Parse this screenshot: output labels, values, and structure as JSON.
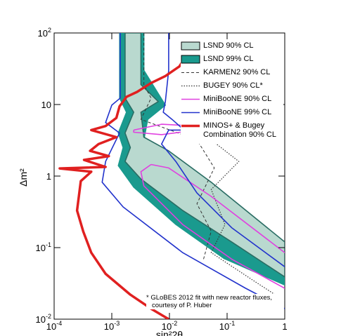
{
  "chart_data": {
    "type": "line",
    "xlabel": "sin²2θ",
    "ylabel": "Δm²",
    "xlog": true,
    "ylog": true,
    "xlim": [
      0.0001,
      1
    ],
    "ylim": [
      0.01,
      100
    ],
    "xticks": [
      {
        "value": 0.0001,
        "label": "10",
        "power": "-4"
      },
      {
        "value": 0.001,
        "label": "10",
        "power": "-3"
      },
      {
        "value": 0.01,
        "label": "10",
        "power": "-2"
      },
      {
        "value": 0.1,
        "label": "10",
        "power": "-1"
      },
      1
    ],
    "yticks": [
      {
        "value": 0.01,
        "label": "10",
        "power": "-2"
      },
      {
        "value": 0.1,
        "label": "10",
        "power": "-1"
      },
      1,
      10,
      {
        "value": 100,
        "label": "10",
        "power": "2"
      }
    ],
    "series": [
      {
        "name": "LSND 99% CL",
        "color": "#1a9a8e",
        "fill": "#1a9a8e",
        "style": "solid",
        "x": [
          0.00137,
          0.0036,
          0.0036,
          0.0085,
          0.0042,
          0.0036,
          0.011,
          0.07,
          1,
          1,
          0.09,
          0.013,
          0.0024,
          0.0013,
          0.00157,
          0.0013,
          0.0018,
          0.00137
        ],
        "values": [
          100,
          100,
          30,
          9.8,
          6.2,
          3.2,
          2.0,
          0.52,
          0.085,
          0.03,
          0.07,
          0.21,
          0.7,
          1.4,
          2.5,
          4.0,
          7.8,
          12.3
        ]
      },
      {
        "name": "LSND 90% CL",
        "color": "#2a6d64",
        "fill": "#b9d9cf",
        "style": "solid",
        "x": [
          0.0017,
          0.0032,
          0.0032,
          0.0064,
          0.0032,
          0.0036,
          0.0097,
          0.053,
          1,
          1,
          0.12,
          0.017,
          0.0032,
          0.0017,
          0.0021,
          0.0017,
          0.0024,
          0.0017
        ],
        "values": [
          100,
          100,
          19,
          11,
          7.8,
          3.5,
          2.25,
          0.82,
          0.12,
          0.039,
          0.12,
          0.33,
          0.91,
          1.6,
          2.5,
          4.0,
          7.8,
          12.3
        ]
      },
      {
        "name": "KARMEN2 90% CL",
        "color": "#333333",
        "style": "dash",
        "x": [
          0.0036,
          0.0036,
          0.0048,
          0.0032,
          0.03,
          0.06,
          0.03,
          0.053,
          0.039
        ],
        "values": [
          100,
          19,
          12.3,
          6.2,
          3.2,
          1.3,
          0.41,
          0.17,
          0.069
        ]
      },
      {
        "name": "BUGEY 90% CL*",
        "color": "#333333",
        "style": "dot",
        "x": [
          0.053,
          0.16,
          0.053,
          0.092,
          0.053,
          0.28,
          1
        ],
        "values": [
          3.2,
          1.6,
          0.65,
          0.21,
          0.085,
          0.035,
          0.018
        ]
      },
      {
        "name": "MiniBooNE 90% CL",
        "color": "#e040e0",
        "style": "solid",
        "x": [
          0.0024,
          0.0073,
          0.03,
          0.03,
          0.0073,
          0.0024,
          0.0024,
          null,
          0.0048,
          0.0097,
          0.053,
          1,
          null,
          1,
          0.12,
          0.017,
          0.0036,
          0.0032,
          0.0048
        ],
        "values": [
          4.4,
          5.3,
          5.0,
          4.4,
          3.8,
          4.1,
          4.4,
          null,
          1.45,
          1.3,
          0.52,
          0.085,
          null,
          0.027,
          0.069,
          0.21,
          0.73,
          1.15,
          1.45
        ]
      },
      {
        "name": "MiniBooNE 99% CL",
        "color": "#2233cc",
        "style": "solid",
        "x": [
          0.0014,
          0.0014,
          0.001,
          0.00078,
          0.00136,
          0.00078,
          0.00068,
          0.00157,
          0.017,
          0.21,
          1,
          null,
          1,
          0.12,
          0.03,
          0.0129,
          0.0073,
          0.0097,
          0.018,
          0.0111,
          0.0078,
          0.0085,
          0.0097,
          0.0097
        ],
        "values": [
          100,
          12.3,
          9.8,
          5.6,
          4.0,
          1.6,
          0.82,
          0.37,
          0.085,
          0.027,
          0.014,
          null,
          0.054,
          0.19,
          0.58,
          1.6,
          2.8,
          4.4,
          4.4,
          6.2,
          7.8,
          11,
          30,
          100
        ]
      },
      {
        "name": "MINOS+ & Bugey Combination 90% CL",
        "color": "#e02020",
        "style": "thick",
        "x": [
          0.026,
          0.0148,
          0.0085,
          0.0048,
          0.00275,
          0.0018,
          0.00136,
          0.0012,
          0.00078,
          0.00044,
          0.0012,
          0.00059,
          0.00042,
          0.00089,
          0.00033,
          0.00078,
          0.000125,
          0.00044,
          0.00029,
          0.00025,
          0.00032,
          0.00044,
          0.00078,
          0.0021,
          0.0048,
          0.0097
        ],
        "values": [
          67,
          34,
          25,
          20,
          15,
          12.8,
          9.4,
          6.5,
          5.0,
          4.4,
          3.5,
          2.8,
          2.25,
          1.9,
          1.68,
          1.34,
          1.28,
          1.15,
          0.85,
          0.33,
          0.168,
          0.085,
          0.043,
          0.022,
          0.014,
          0.01
        ]
      }
    ],
    "footnote": [
      "* GLoBES 2012 fit with new reactor fluxes,",
      "courtesy of P. Huber"
    ]
  }
}
